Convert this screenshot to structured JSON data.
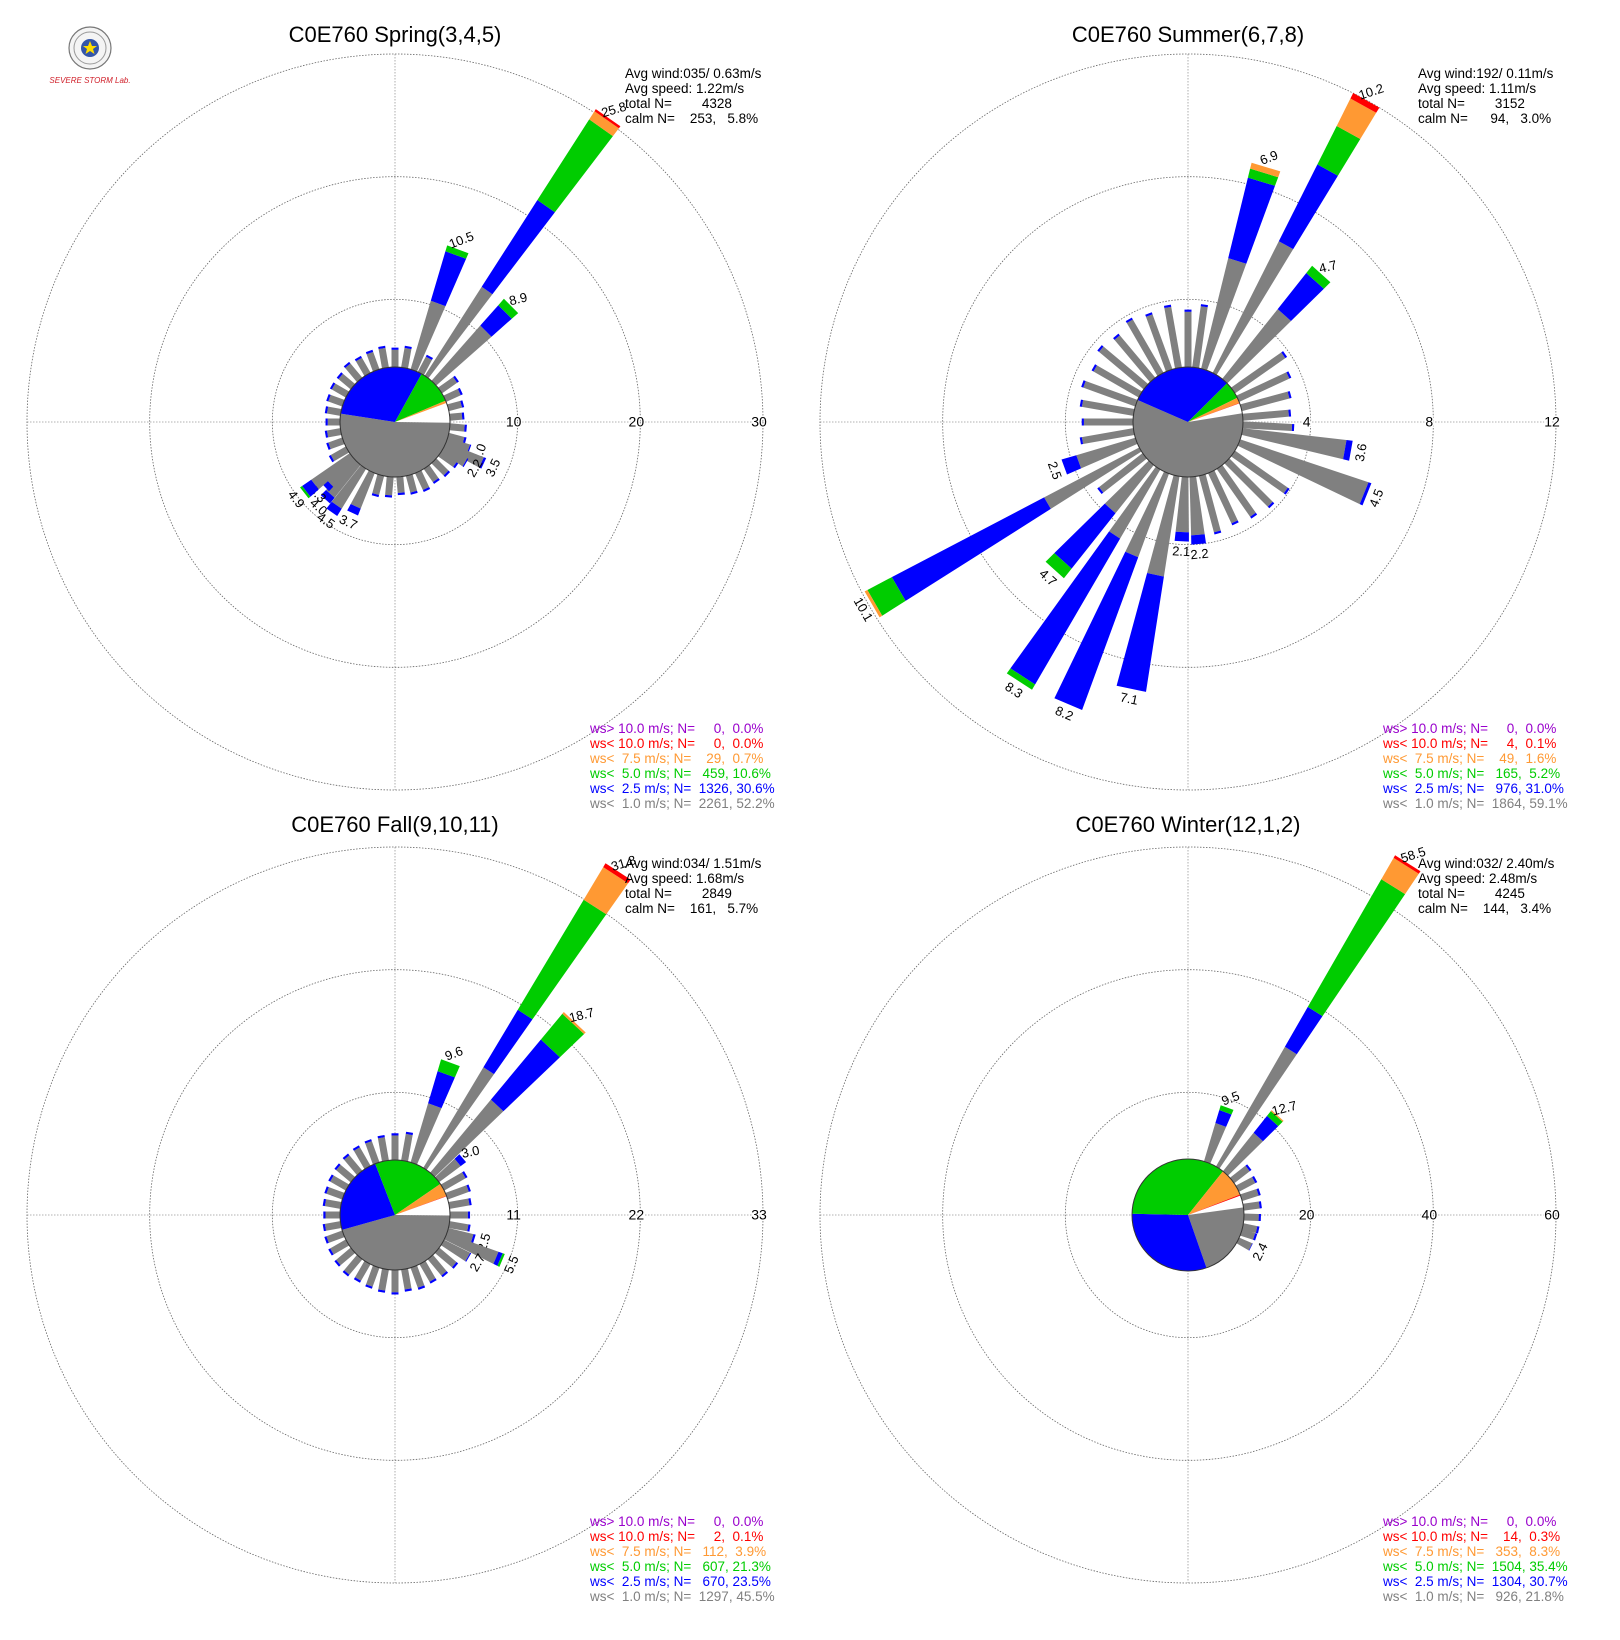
{
  "logo": {
    "name": "severe-storm-lab-logo",
    "text": "SEVERE STORM Lab."
  },
  "colors": {
    "gt10": "#9900cc",
    "lt10": "#ff0000",
    "lt75": "#ff9933",
    "lt50": "#00cc00",
    "lt25": "#0000ff",
    "lt10ms": "#808080",
    "calm": "#ffffff"
  },
  "chart_data": [
    {
      "type": "windrose",
      "title": "C0E760 Spring(3,4,5)",
      "rmax": 30,
      "ring_labels": [
        "10",
        "20",
        "30"
      ],
      "stats": [
        "Avg wind:035/ 0.63m/s",
        "Avg speed: 1.22m/s",
        "total N=        4328",
        "calm N=    253,   5.8%"
      ],
      "legend": [
        {
          "text": "ws> 10.0 m/s; N=     0,  0.0%",
          "color": "#9900cc"
        },
        {
          "text": "ws< 10.0 m/s; N=     0,  0.0%",
          "color": "#ff0000"
        },
        {
          "text": "ws<  7.5 m/s; N=    29,  0.7%",
          "color": "#ff9933"
        },
        {
          "text": "ws<  5.0 m/s; N=   459, 10.6%",
          "color": "#00cc00"
        },
        {
          "text": "ws<  2.5 m/s; N=  1326, 30.6%",
          "color": "#0000ff"
        },
        {
          "text": "ws<  1.0 m/s; N=  2261, 52.2%",
          "color": "#808080"
        }
      ],
      "pie": [
        0.058,
        0.522,
        0.306,
        0.106,
        0.007,
        0.0
      ],
      "spokes": [
        {
          "dir": 35,
          "v": 25.8,
          "label": "25.8",
          "parts": [
            8.6,
            8.4,
            7.8,
            0.8,
            0.2
          ]
        },
        {
          "dir": 20,
          "v": 10.5,
          "label": "10.5",
          "parts": [
            5.8,
            4.2,
            0.5
          ]
        },
        {
          "dir": 45,
          "v": 8.9,
          "label": "8.9",
          "parts": [
            6.0,
            2.2,
            0.7
          ]
        },
        {
          "dir": 110,
          "v": 2.0,
          "label": "2.0",
          "parts": [
            1.9,
            0.1
          ]
        },
        {
          "dir": 115,
          "v": 3.5,
          "label": "3.5",
          "parts": [
            3.3,
            0.2
          ]
        },
        {
          "dir": 120,
          "v": 2.2,
          "label": "2.2",
          "parts": [
            2.1,
            0.1
          ]
        },
        {
          "dir": 205,
          "v": 3.7,
          "label": "3.7",
          "parts": [
            3.1,
            0.6
          ]
        },
        {
          "dir": 215,
          "v": 4.5,
          "label": "4.5",
          "parts": [
            3.8,
            0.7
          ]
        },
        {
          "dir": 222,
          "v": 4.0,
          "label": "4.0",
          "parts": [
            3.4,
            0.6
          ]
        },
        {
          "dir": 227,
          "v": 3.3,
          "label": "3.3",
          "parts": [
            2.8,
            0.5
          ]
        },
        {
          "dir": 232,
          "v": 4.9,
          "label": "4.9",
          "parts": [
            3.8,
            0.9,
            0.2
          ]
        }
      ],
      "small": [
        {
          "a": 10,
          "v": 1.6
        },
        {
          "a": 28,
          "v": 1.4
        },
        {
          "a": 55,
          "v": 1.5
        },
        {
          "a": 65,
          "v": 1.3
        },
        {
          "a": 75,
          "v": 1.1
        },
        {
          "a": 85,
          "v": 1.0
        },
        {
          "a": 95,
          "v": 1.2
        },
        {
          "a": 105,
          "v": 1.3
        },
        {
          "a": 125,
          "v": 1.5
        },
        {
          "a": 135,
          "v": 1.4
        },
        {
          "a": 145,
          "v": 1.3
        },
        {
          "a": 155,
          "v": 1.5
        },
        {
          "a": 165,
          "v": 1.4
        },
        {
          "a": 175,
          "v": 1.3
        },
        {
          "a": 185,
          "v": 1.5
        },
        {
          "a": 195,
          "v": 1.6
        },
        {
          "a": 240,
          "v": 1.4
        },
        {
          "a": 250,
          "v": 1.2
        },
        {
          "a": 260,
          "v": 1.1
        },
        {
          "a": 270,
          "v": 1.0
        },
        {
          "a": 280,
          "v": 1.1
        },
        {
          "a": 290,
          "v": 1.2
        },
        {
          "a": 300,
          "v": 1.3
        },
        {
          "a": 310,
          "v": 1.3
        },
        {
          "a": 320,
          "v": 1.5
        },
        {
          "a": 330,
          "v": 1.4
        },
        {
          "a": 340,
          "v": 1.5
        },
        {
          "a": 350,
          "v": 1.6
        },
        {
          "a": 0,
          "v": 1.4
        }
      ]
    },
    {
      "type": "windrose",
      "title": "C0E760 Summer(6,7,8)",
      "rmax": 12,
      "ring_labels": [
        "4",
        "8",
        "12"
      ],
      "stats": [
        "Avg wind:192/ 0.11m/s",
        "Avg speed: 1.11m/s",
        "total N=        3152",
        "calm N=      94,   3.0%"
      ],
      "legend": [
        {
          "text": "ws> 10.0 m/s; N=     0,  0.0%",
          "color": "#9900cc"
        },
        {
          "text": "ws< 10.0 m/s; N=     4,  0.1%",
          "color": "#ff0000"
        },
        {
          "text": "ws<  7.5 m/s; N=    49,  1.6%",
          "color": "#ff9933"
        },
        {
          "text": "ws<  5.0 m/s; N=   165,  5.2%",
          "color": "#00cc00"
        },
        {
          "text": "ws<  2.5 m/s; N=   976, 31.0%",
          "color": "#0000ff"
        },
        {
          "text": "ws<  1.0 m/s; N=  1864, 59.1%",
          "color": "#808080"
        }
      ],
      "pie": [
        0.03,
        0.591,
        0.31,
        0.052,
        0.016,
        0.001
      ],
      "spokes": [
        {
          "dir": 29,
          "v": 10.2,
          "label": "10.2",
          "parts": [
            4.8,
            2.8,
            1.4,
            1.0,
            0.2
          ]
        },
        {
          "dir": 17,
          "v": 6.9,
          "label": "6.9",
          "parts": [
            3.7,
            2.7,
            0.3,
            0.2
          ]
        },
        {
          "dir": 42,
          "v": 4.7,
          "label": "4.7",
          "parts": [
            2.9,
            1.5,
            0.3
          ]
        },
        {
          "dir": 100,
          "v": 3.6,
          "label": "3.6",
          "parts": [
            3.4,
            0.2
          ]
        },
        {
          "dir": 112,
          "v": 4.5,
          "label": "4.5",
          "parts": [
            4.4,
            0.1
          ]
        },
        {
          "dir": 175,
          "v": 2.2,
          "label": "2.2",
          "parts": [
            1.9,
            0.3
          ]
        },
        {
          "dir": 183,
          "v": 2.1,
          "label": "2.1",
          "parts": [
            1.8,
            0.3
          ]
        },
        {
          "dir": 192,
          "v": 7.1,
          "label": "7.1",
          "parts": [
            3.3,
            3.8
          ]
        },
        {
          "dir": 203,
          "v": 8.2,
          "label": "8.2",
          "parts": [
            2.9,
            5.3
          ]
        },
        {
          "dir": 213,
          "v": 8.3,
          "label": "8.3",
          "parts": [
            2.6,
            5.5,
            0.2
          ]
        },
        {
          "dir": 222,
          "v": 4.7,
          "label": "4.7",
          "parts": [
            2.0,
            2.3,
            0.4
          ]
        },
        {
          "dir": 240,
          "v": 10.1,
          "label": "10.1",
          "parts": [
            3.5,
            5.6,
            0.9,
            0.1
          ]
        },
        {
          "dir": 250,
          "v": 2.5,
          "label": "2.5",
          "parts": [
            2.0,
            0.5
          ]
        }
      ],
      "small": [
        {
          "a": 0,
          "v": 1.8
        },
        {
          "a": 8,
          "v": 2.0
        },
        {
          "a": 55,
          "v": 2.0
        },
        {
          "a": 65,
          "v": 1.8
        },
        {
          "a": 75,
          "v": 1.6
        },
        {
          "a": 85,
          "v": 1.5
        },
        {
          "a": 93,
          "v": 1.6
        },
        {
          "a": 125,
          "v": 2.1
        },
        {
          "a": 135,
          "v": 2.0
        },
        {
          "a": 145,
          "v": 1.9
        },
        {
          "a": 155,
          "v": 1.8
        },
        {
          "a": 165,
          "v": 1.9
        },
        {
          "a": 232,
          "v": 1.8
        },
        {
          "a": 260,
          "v": 1.7
        },
        {
          "a": 270,
          "v": 1.6
        },
        {
          "a": 280,
          "v": 1.7
        },
        {
          "a": 290,
          "v": 1.8
        },
        {
          "a": 300,
          "v": 1.7
        },
        {
          "a": 310,
          "v": 1.9
        },
        {
          "a": 320,
          "v": 1.8
        },
        {
          "a": 330,
          "v": 2.0
        },
        {
          "a": 340,
          "v": 1.9
        },
        {
          "a": 350,
          "v": 2.0
        }
      ]
    },
    {
      "type": "windrose",
      "title": "C0E760 Fall(9,10,11)",
      "rmax": 33,
      "ring_labels": [
        "11",
        "22",
        "33"
      ],
      "stats": [
        "Avg wind:034/ 1.51m/s",
        "Avg speed: 1.68m/s",
        "total N=        2849",
        "calm N=    161,   5.7%"
      ],
      "legend": [
        {
          "text": "ws> 10.0 m/s; N=     0,  0.0%",
          "color": "#9900cc"
        },
        {
          "text": "ws< 10.0 m/s; N=     2,  0.1%",
          "color": "#ff0000"
        },
        {
          "text": "ws<  7.5 m/s; N=   112,  3.9%",
          "color": "#ff9933"
        },
        {
          "text": "ws<  5.0 m/s; N=   607, 21.3%",
          "color": "#00cc00"
        },
        {
          "text": "ws<  2.5 m/s; N=   670, 23.5%",
          "color": "#0000ff"
        },
        {
          "text": "ws<  1.0 m/s; N=  1297, 45.5%",
          "color": "#808080"
        }
      ],
      "pie": [
        0.057,
        0.455,
        0.235,
        0.213,
        0.039,
        0.001
      ],
      "spokes": [
        {
          "dir": 33,
          "v": 31.8,
          "label": "31.8",
          "parts": [
            10.5,
            6.0,
            11.5,
            3.4,
            0.4
          ]
        },
        {
          "dir": 43,
          "v": 18.7,
          "label": "18.7",
          "parts": [
            8.5,
            7.0,
            3.0,
            0.2
          ]
        },
        {
          "dir": 20,
          "v": 9.6,
          "label": "9.6",
          "parts": [
            5.5,
            3.0,
            1.1
          ]
        },
        {
          "dir": 50,
          "v": 3.0,
          "label": "3.0",
          "parts": [
            2.4,
            0.6
          ]
        },
        {
          "dir": 107,
          "v": 2.5,
          "label": "2.5",
          "parts": [
            2.3,
            0.2
          ]
        },
        {
          "dir": 113,
          "v": 5.5,
          "label": "5.5",
          "parts": [
            4.9,
            0.4,
            0.2
          ]
        },
        {
          "dir": 120,
          "v": 2.7,
          "label": "2.7",
          "parts": [
            2.6,
            0.1
          ]
        }
      ],
      "small": [
        {
          "a": 0,
          "v": 2.2
        },
        {
          "a": 10,
          "v": 2.4
        },
        {
          "a": 60,
          "v": 2.2
        },
        {
          "a": 70,
          "v": 2.0
        },
        {
          "a": 80,
          "v": 1.8
        },
        {
          "a": 90,
          "v": 1.6
        },
        {
          "a": 100,
          "v": 1.7
        },
        {
          "a": 130,
          "v": 2.0
        },
        {
          "a": 140,
          "v": 1.9
        },
        {
          "a": 150,
          "v": 1.8
        },
        {
          "a": 160,
          "v": 1.9
        },
        {
          "a": 170,
          "v": 1.8
        },
        {
          "a": 180,
          "v": 2.0
        },
        {
          "a": 190,
          "v": 1.9
        },
        {
          "a": 200,
          "v": 1.8
        },
        {
          "a": 210,
          "v": 1.7
        },
        {
          "a": 220,
          "v": 1.8
        },
        {
          "a": 230,
          "v": 1.7
        },
        {
          "a": 240,
          "v": 1.6
        },
        {
          "a": 250,
          "v": 1.5
        },
        {
          "a": 260,
          "v": 1.4
        },
        {
          "a": 270,
          "v": 1.3
        },
        {
          "a": 280,
          "v": 1.4
        },
        {
          "a": 290,
          "v": 1.5
        },
        {
          "a": 300,
          "v": 1.6
        },
        {
          "a": 310,
          "v": 1.7
        },
        {
          "a": 320,
          "v": 1.8
        },
        {
          "a": 330,
          "v": 1.9
        },
        {
          "a": 340,
          "v": 2.0
        },
        {
          "a": 350,
          "v": 2.1
        }
      ]
    },
    {
      "type": "windrose",
      "title": "C0E760 Winter(12,1,2)",
      "rmax": 60,
      "ring_labels": [
        "20",
        "40",
        "60"
      ],
      "stats": [
        "Avg wind:032/ 2.40m/s",
        "Avg speed: 2.48m/s",
        "total N=        4245",
        "calm N=    144,   3.4%"
      ],
      "legend": [
        {
          "text": "ws> 10.0 m/s; N=     0,  0.0%",
          "color": "#9900cc"
        },
        {
          "text": "ws< 10.0 m/s; N=    14,  0.3%",
          "color": "#ff0000"
        },
        {
          "text": "ws<  7.5 m/s; N=   353,  8.3%",
          "color": "#ff9933"
        },
        {
          "text": "ws<  5.0 m/s; N=  1504, 35.4%",
          "color": "#00cc00"
        },
        {
          "text": "ws<  2.5 m/s; N=  1304, 30.7%",
          "color": "#0000ff"
        },
        {
          "text": "ws<  1.0 m/s; N=   926, 21.8%",
          "color": "#808080"
        }
      ],
      "pie": [
        0.034,
        0.218,
        0.307,
        0.354,
        0.083,
        0.003
      ],
      "spokes": [
        {
          "dir": 32,
          "v": 58.5,
          "label": "58.5",
          "parts": [
            22.5,
            7.5,
            24.0,
            4.0,
            0.5
          ]
        },
        {
          "dir": 20,
          "v": 9.5,
          "label": "9.5",
          "parts": [
            6.5,
            2.2,
            0.8
          ]
        },
        {
          "dir": 42,
          "v": 12.7,
          "label": "12.7",
          "parts": [
            8.0,
            3.5,
            1.0,
            0.2
          ]
        },
        {
          "dir": 117,
          "v": 2.4,
          "label": "2.4",
          "parts": [
            2.3,
            0.1
          ]
        }
      ],
      "small": [
        {
          "a": 52,
          "v": 3.2
        },
        {
          "a": 62,
          "v": 3.0
        },
        {
          "a": 72,
          "v": 2.8
        },
        {
          "a": 82,
          "v": 2.6
        },
        {
          "a": 92,
          "v": 2.4
        },
        {
          "a": 102,
          "v": 2.3
        },
        {
          "a": 108,
          "v": 2.2
        }
      ]
    }
  ]
}
